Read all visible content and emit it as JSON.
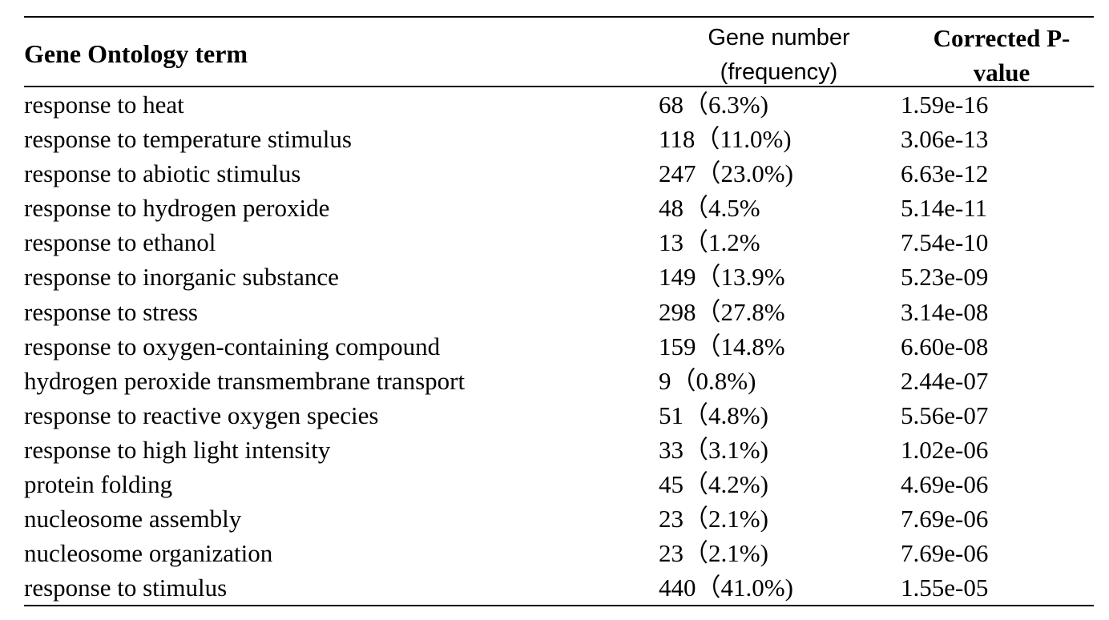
{
  "table": {
    "headers": {
      "term": "Gene Ontology term",
      "gene_line1": "Gene number",
      "gene_line2": "(frequency)",
      "pvalue_line1": "Corrected P-",
      "pvalue_line2": "value"
    },
    "rows": [
      {
        "term": "response to heat",
        "gene": "68（6.3%)",
        "pvalue": "1.59e-16"
      },
      {
        "term": "response to temperature stimulus",
        "gene": "118（11.0%)",
        "pvalue": "3.06e-13"
      },
      {
        "term": "response to abiotic stimulus",
        "gene": "247（23.0%)",
        "pvalue": "6.63e-12"
      },
      {
        "term": "response to hydrogen peroxide",
        "gene": "48（4.5%",
        "pvalue": "5.14e-11"
      },
      {
        "term": "response to ethanol",
        "gene": "13（1.2%",
        "pvalue": "7.54e-10"
      },
      {
        "term": "response to inorganic substance",
        "gene": "149（13.9%",
        "pvalue": "5.23e-09"
      },
      {
        "term": "response to stress",
        "gene": "298（27.8%",
        "pvalue": "3.14e-08"
      },
      {
        "term": "response to oxygen-containing compound",
        "gene": "159（14.8%",
        "pvalue": "6.60e-08"
      },
      {
        "term": "hydrogen peroxide transmembrane transport",
        "gene": "9（0.8%)",
        "pvalue": "2.44e-07"
      },
      {
        "term": "response to reactive oxygen species",
        "gene": "51（4.8%)",
        "pvalue": "5.56e-07"
      },
      {
        "term": "response to high light intensity",
        "gene": "33（3.1%)",
        "pvalue": "1.02e-06"
      },
      {
        "term": "protein folding",
        "gene": "45（4.2%)",
        "pvalue": "4.69e-06"
      },
      {
        "term": "nucleosome assembly",
        "gene": "23（2.1%)",
        "pvalue": "7.69e-06"
      },
      {
        "term": "nucleosome organization",
        "gene": "23（2.1%)",
        "pvalue": "7.69e-06"
      },
      {
        "term": "response to stimulus",
        "gene": "440（41.0%)",
        "pvalue": "1.55e-05"
      }
    ]
  }
}
